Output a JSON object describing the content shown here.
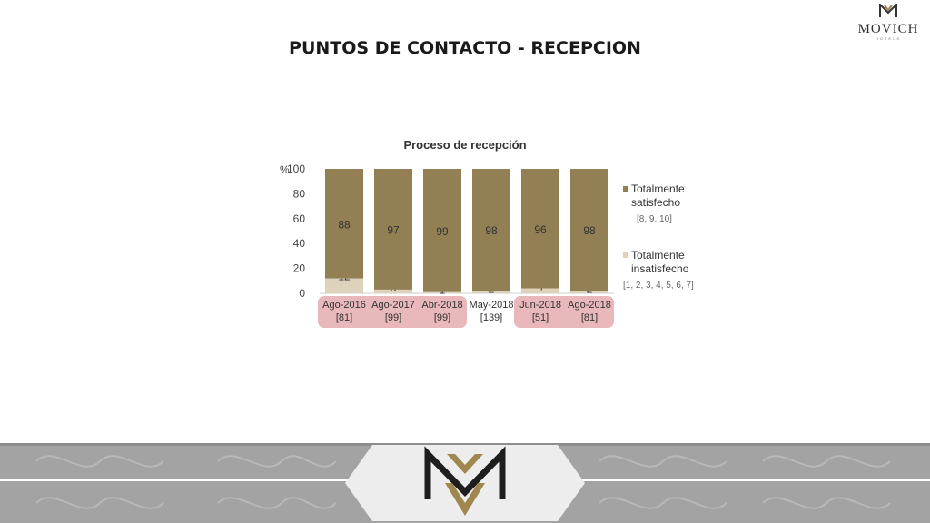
{
  "header": {
    "title": "PUNTOS DE CONTACTO - RECEPCION"
  },
  "brand": {
    "name": "MOVICH",
    "sub": "HOTELS"
  },
  "chart_data": {
    "type": "bar",
    "stacked": true,
    "title": "Proceso de recepción",
    "ylabel": "%",
    "ylim": [
      0,
      100
    ],
    "yticks": [
      0,
      20,
      40,
      60,
      80,
      100
    ],
    "categories": [
      "Ago-2016",
      "Ago-2017",
      "Abr-2018",
      "May-2018",
      "Jun-2018",
      "Ago-2018"
    ],
    "sample_sizes": [
      "[81]",
      "[99]",
      "[99]",
      "[139]",
      "[51]",
      "[81]"
    ],
    "highlighted": [
      true,
      true,
      true,
      false,
      true,
      true
    ],
    "series": [
      {
        "name": "Totalmente insatisfecho",
        "range": "[1, 2, 3, 4, 5, 6, 7]",
        "values": [
          12,
          3,
          1,
          2,
          4,
          2
        ],
        "color": "#ddd3bd"
      },
      {
        "name": "Totalmente satisfecho",
        "range": "[8, 9, 10]",
        "values": [
          88,
          97,
          99,
          98,
          96,
          98
        ],
        "color": "#927f54"
      }
    ],
    "highlight_color": "#e9b8ba",
    "legend_position": "right"
  },
  "colors": {
    "footer_band": "#9a9a9a",
    "footer_band_light": "#b9b9b9",
    "logo_gold": "#a0874f",
    "logo_dark": "#1e1e1e"
  }
}
